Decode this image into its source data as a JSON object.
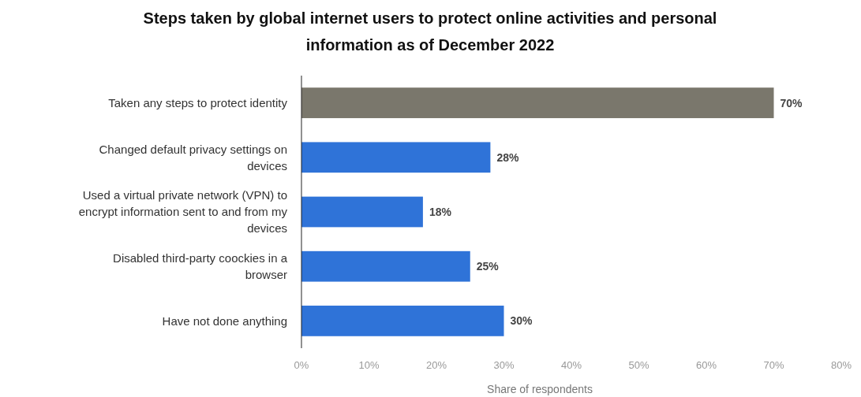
{
  "chart_data": {
    "type": "bar",
    "orientation": "horizontal",
    "title": "Steps taken by global internet users to protect online activities and personal information as of December 2022",
    "xlabel": "Share of respondents",
    "categories": [
      "Taken any steps to protect identity",
      "Changed default privacy settings on devices",
      "Used a virtual private network (VPN) to encrypt information sent to and from my devices",
      "Disabled third-party coockies in a browser",
      "Have not done anything"
    ],
    "values": [
      70,
      28,
      18,
      25,
      30
    ],
    "colors": [
      "#7a776c",
      "#2f73d8",
      "#2f73d8",
      "#2f73d8",
      "#2f73d8"
    ],
    "value_labels": [
      "70%",
      "28%",
      "18%",
      "25%",
      "30%"
    ],
    "xlim": [
      0,
      80
    ],
    "xticks": [
      {
        "value": 0,
        "label": "0%"
      },
      {
        "value": 10,
        "label": "10%"
      },
      {
        "value": 20,
        "label": "20%"
      },
      {
        "value": 30,
        "label": "30%"
      },
      {
        "value": 40,
        "label": "40%"
      },
      {
        "value": 50,
        "label": "50%"
      },
      {
        "value": 60,
        "label": "60%"
      },
      {
        "value": 70,
        "label": "70%"
      },
      {
        "value": 80,
        "label": "80%"
      }
    ],
    "grid": false
  }
}
